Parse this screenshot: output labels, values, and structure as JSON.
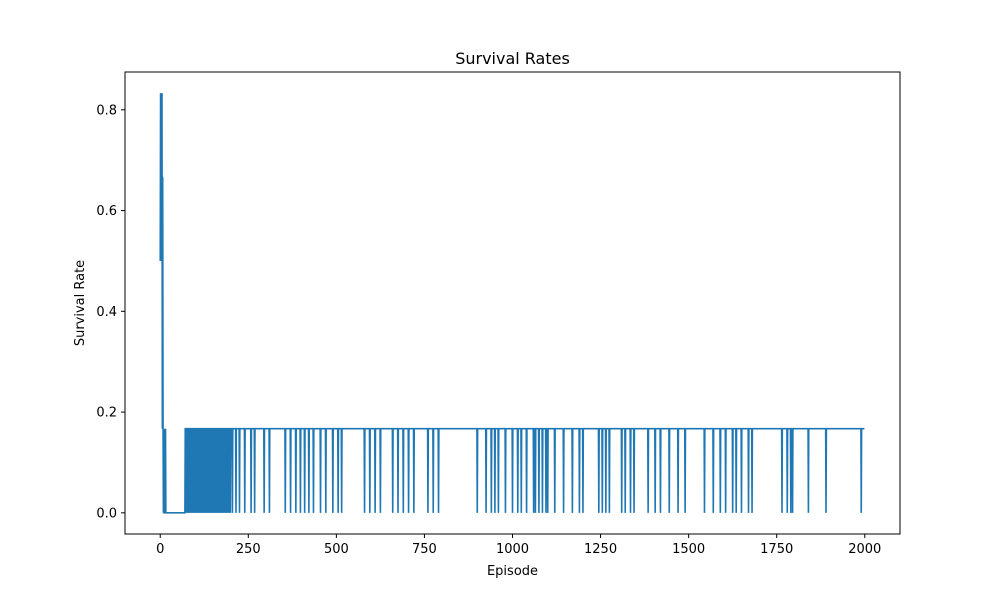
{
  "chart_data": {
    "type": "line",
    "title": "Survival Rates",
    "xlabel": "Episode",
    "ylabel": "Survival Rate",
    "xlim": [
      -100,
      2100
    ],
    "ylim": [
      -0.042,
      0.875
    ],
    "xticks": [
      0,
      250,
      500,
      750,
      1000,
      1250,
      1500,
      1750,
      2000
    ],
    "xtick_labels": [
      "0",
      "250",
      "500",
      "750",
      "1000",
      "1250",
      "1500",
      "1750",
      "2000"
    ],
    "yticks": [
      0.0,
      0.2,
      0.4,
      0.6,
      0.8
    ],
    "ytick_labels": [
      "0.0",
      "0.2",
      "0.4",
      "0.6",
      "0.8"
    ],
    "grid": false,
    "series": [
      {
        "color": "#1f77b4",
        "x_start": 0,
        "x_end": 1999,
        "initial": [
          [
            0,
            0.5
          ],
          [
            1,
            0.833
          ],
          [
            2,
            0.5
          ],
          [
            3,
            0.833
          ],
          [
            4,
            0.667
          ],
          [
            5,
            0.833
          ],
          [
            6,
            0.167
          ],
          [
            7,
            0.667
          ],
          [
            8,
            0.167
          ],
          [
            9,
            0.0
          ],
          [
            10,
            0.167
          ],
          [
            11,
            0.0
          ],
          [
            12,
            0.0
          ],
          [
            13,
            0.167
          ],
          [
            14,
            0.0
          ],
          [
            15,
            0.167
          ],
          [
            16,
            0.0
          ]
        ],
        "dense_zero_range": [
          70,
          200
        ],
        "dense_zero_step": 3,
        "baseline_after_initial": 0.167,
        "zero_run_until": 70,
        "zero_episodes": [
          205,
          215,
          225,
          240,
          258,
          268,
          295,
          310,
          355,
          370,
          385,
          398,
          410,
          422,
          435,
          455,
          470,
          490,
          505,
          515,
          580,
          595,
          610,
          625,
          660,
          675,
          690,
          705,
          720,
          760,
          775,
          790,
          900,
          925,
          940,
          950,
          960,
          980,
          1000,
          1015,
          1025,
          1040,
          1060,
          1065,
          1075,
          1085,
          1095,
          1100,
          1120,
          1145,
          1170,
          1190,
          1200,
          1245,
          1255,
          1265,
          1275,
          1310,
          1320,
          1335,
          1345,
          1385,
          1405,
          1420,
          1445,
          1470,
          1490,
          1545,
          1570,
          1590,
          1605,
          1625,
          1635,
          1650,
          1670,
          1680,
          1765,
          1780,
          1790,
          1795,
          1840,
          1890,
          1990
        ]
      }
    ]
  }
}
